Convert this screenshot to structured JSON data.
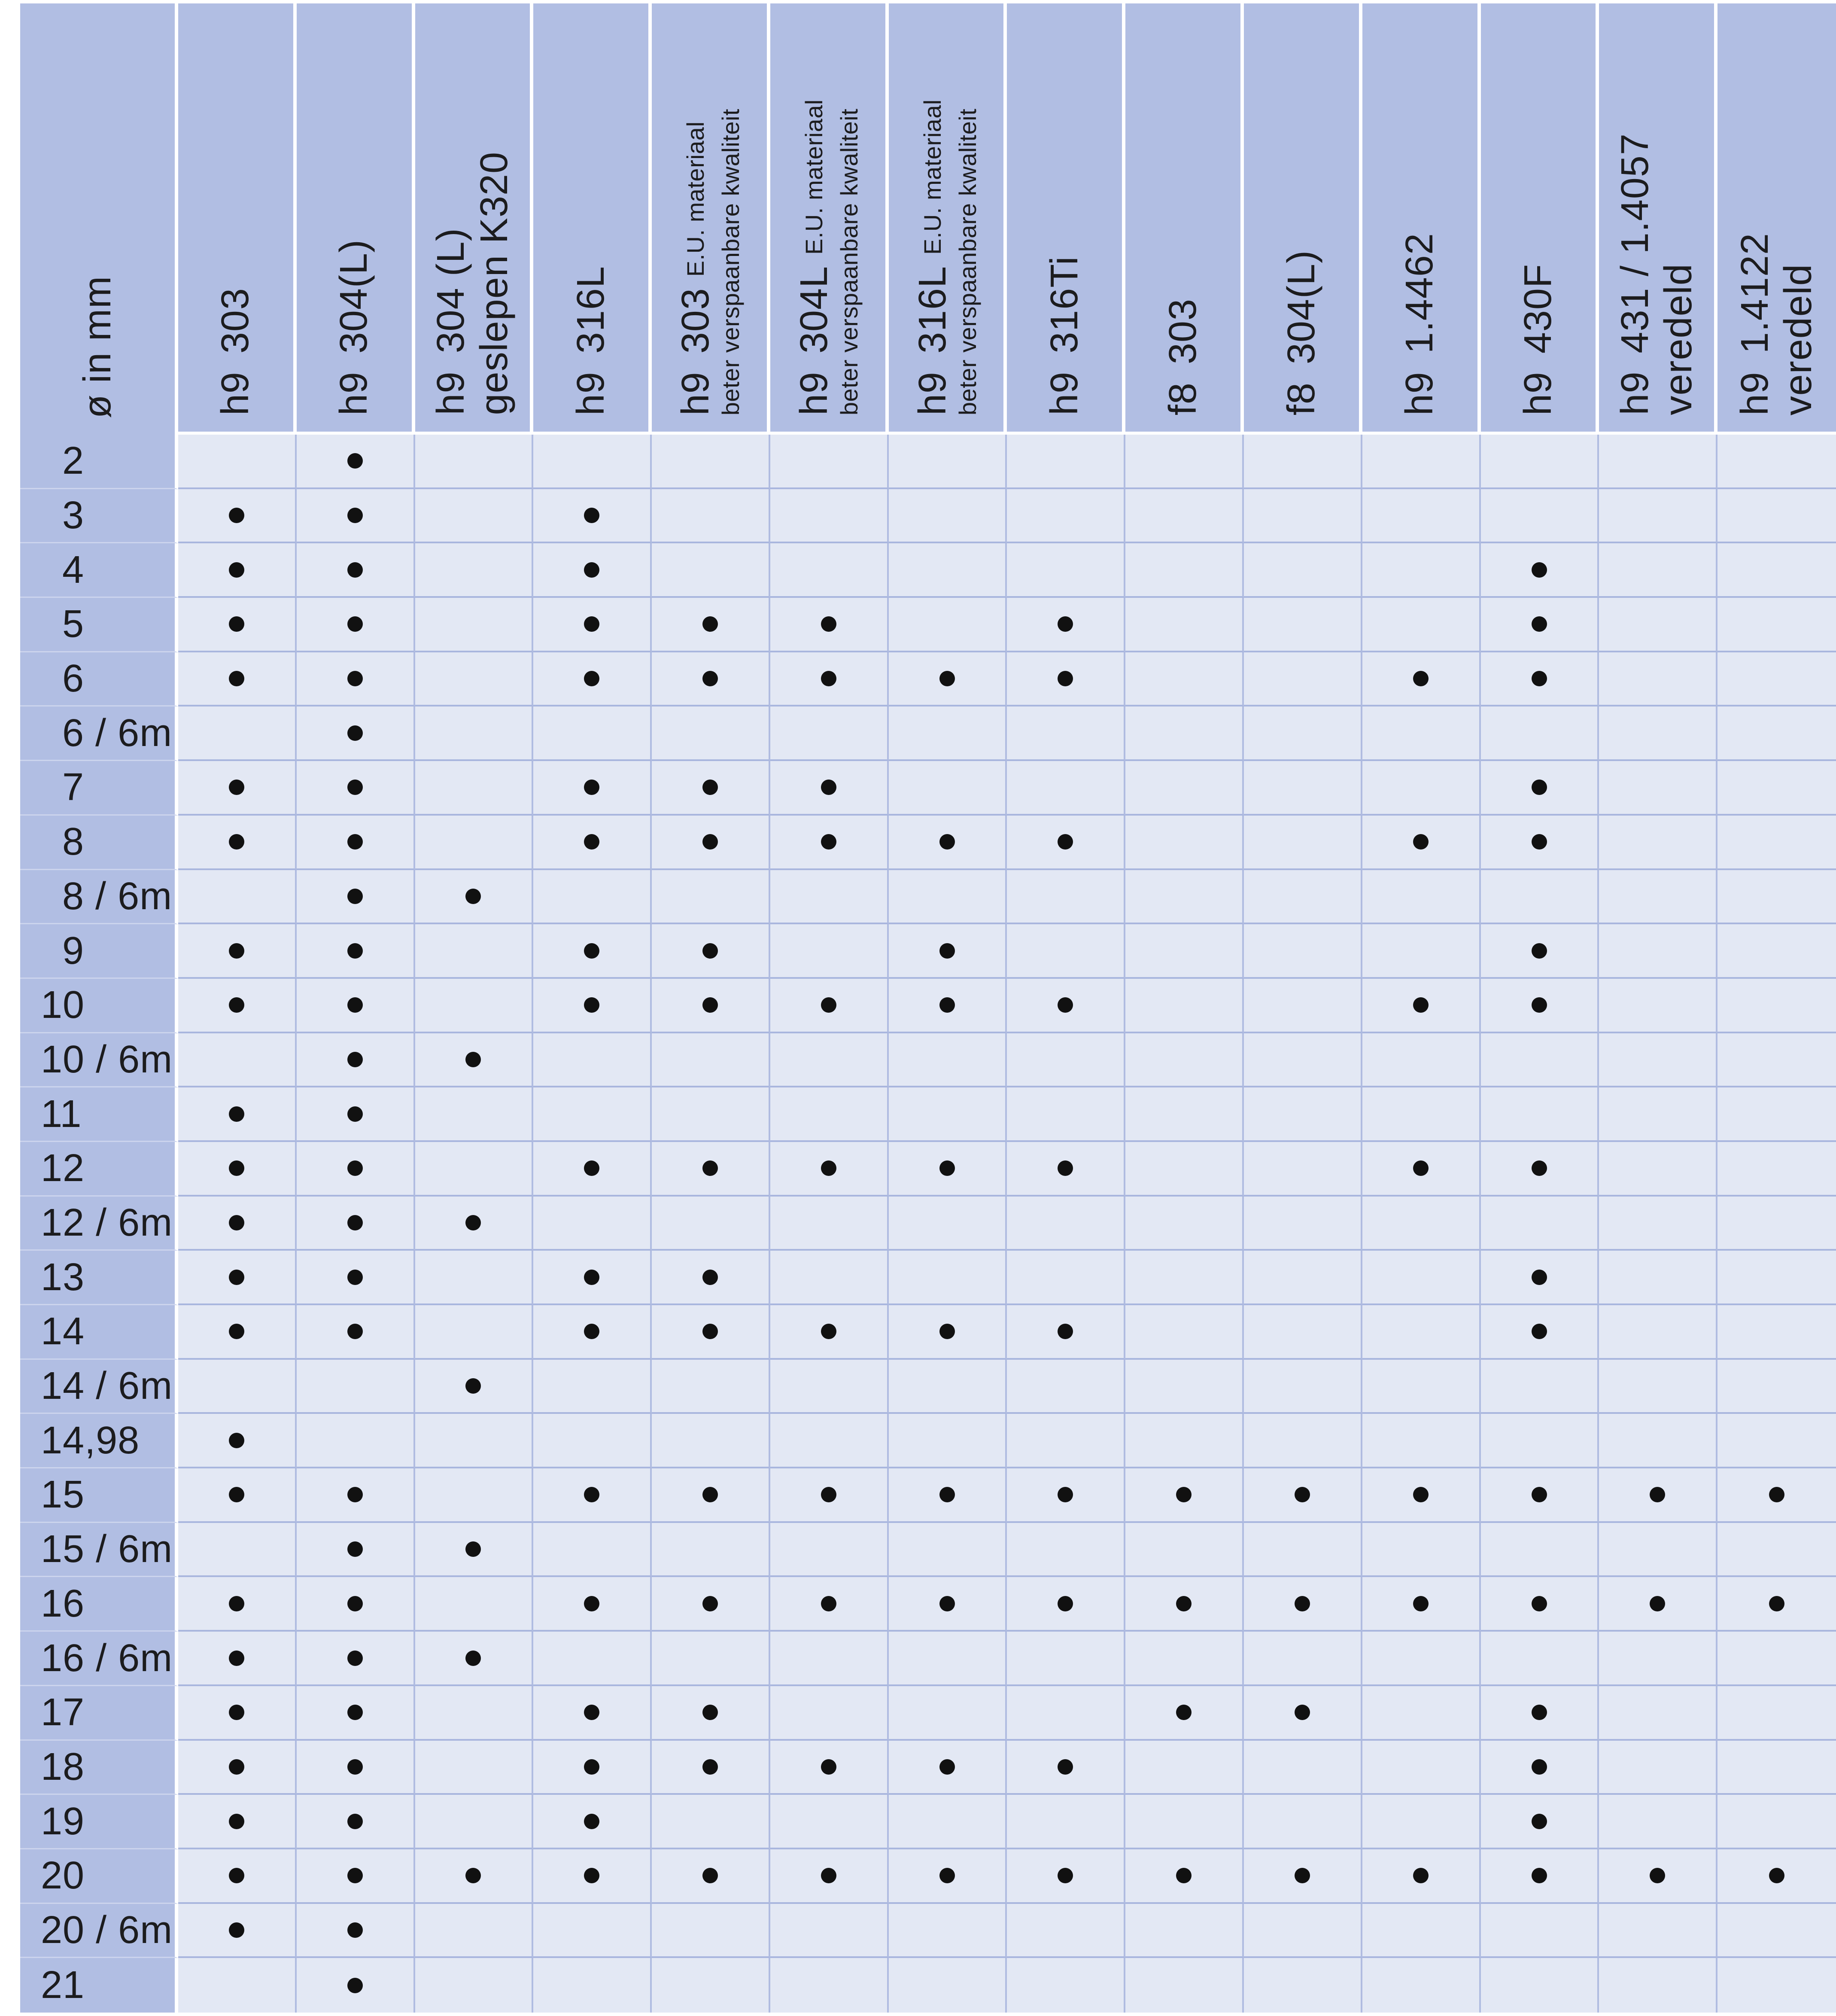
{
  "table": {
    "corner_label": "ø in mm",
    "columns": [
      {
        "tolerance": "h9",
        "grade": "303"
      },
      {
        "tolerance": "h9",
        "grade": "304(L)"
      },
      {
        "tolerance": "h9",
        "grade": "304 (L)",
        "line2": "geslepen K320"
      },
      {
        "tolerance": "h9",
        "grade": "316L"
      },
      {
        "tolerance": "h9",
        "grade": "303",
        "grade_suffix_small": "E.U. materiaal",
        "line2_small": "beter verspaanbare kwaliteit"
      },
      {
        "tolerance": "h9",
        "grade": "304L",
        "grade_suffix_small": "E.U. materiaal",
        "line2_small": "beter verspaanbare kwaliteit"
      },
      {
        "tolerance": "h9",
        "grade": "316L",
        "grade_suffix_small": "E.U. materiaal",
        "line2_small": "beter verspaanbare kwaliteit"
      },
      {
        "tolerance": "h9",
        "grade": "316Ti"
      },
      {
        "tolerance": "f8",
        "grade": "303"
      },
      {
        "tolerance": "f8",
        "grade": "304(L)"
      },
      {
        "tolerance": "h9",
        "grade": "1.4462"
      },
      {
        "tolerance": "h9",
        "grade": "430F"
      },
      {
        "tolerance": "h9",
        "grade": "431 / 1.4057",
        "line2": "veredeld"
      },
      {
        "tolerance": "h9",
        "grade": "1.4122",
        "line2": "veredeld"
      }
    ],
    "rows": [
      {
        "label": "2",
        "dots": [
          2
        ]
      },
      {
        "label": "3",
        "dots": [
          1,
          2,
          4
        ]
      },
      {
        "label": "4",
        "dots": [
          1,
          2,
          4,
          12
        ]
      },
      {
        "label": "5",
        "dots": [
          1,
          2,
          4,
          5,
          6,
          8,
          12
        ]
      },
      {
        "label": "6",
        "dots": [
          1,
          2,
          4,
          5,
          6,
          7,
          8,
          11,
          12
        ]
      },
      {
        "label": "6 / 6m",
        "dots": [
          2
        ]
      },
      {
        "label": "7",
        "dots": [
          1,
          2,
          4,
          5,
          6,
          12
        ]
      },
      {
        "label": "8",
        "dots": [
          1,
          2,
          4,
          5,
          6,
          7,
          8,
          11,
          12
        ]
      },
      {
        "label": "8 / 6m",
        "dots": [
          2,
          3
        ]
      },
      {
        "label": "9",
        "dots": [
          1,
          2,
          4,
          5,
          7,
          12
        ]
      },
      {
        "label": "10",
        "dots": [
          1,
          2,
          4,
          5,
          6,
          7,
          8,
          11,
          12
        ]
      },
      {
        "label": "10 / 6m",
        "dots": [
          2,
          3
        ]
      },
      {
        "label": "11",
        "dots": [
          1,
          2
        ]
      },
      {
        "label": "12",
        "dots": [
          1,
          2,
          4,
          5,
          6,
          7,
          8,
          11,
          12
        ]
      },
      {
        "label": "12 / 6m",
        "dots": [
          1,
          2,
          3
        ]
      },
      {
        "label": "13",
        "dots": [
          1,
          2,
          4,
          5,
          12
        ]
      },
      {
        "label": "14",
        "dots": [
          1,
          2,
          4,
          5,
          6,
          7,
          8,
          12
        ]
      },
      {
        "label": "14 / 6m",
        "dots": [
          3
        ]
      },
      {
        "label": "14,98",
        "dots": [
          1
        ]
      },
      {
        "label": "15",
        "dots": [
          1,
          2,
          4,
          5,
          6,
          7,
          8,
          9,
          10,
          11,
          12,
          13,
          14
        ]
      },
      {
        "label": "15 / 6m",
        "dots": [
          2,
          3
        ]
      },
      {
        "label": "16",
        "dots": [
          1,
          2,
          4,
          5,
          6,
          7,
          8,
          9,
          10,
          11,
          12,
          13,
          14
        ]
      },
      {
        "label": "16 / 6m",
        "dots": [
          1,
          2,
          3
        ]
      },
      {
        "label": "17",
        "dots": [
          1,
          2,
          4,
          5,
          9,
          10,
          12
        ]
      },
      {
        "label": "18",
        "dots": [
          1,
          2,
          4,
          5,
          6,
          7,
          8,
          12
        ]
      },
      {
        "label": "19",
        "dots": [
          1,
          2,
          4,
          12
        ]
      },
      {
        "label": "20",
        "dots": [
          1,
          2,
          3,
          4,
          5,
          6,
          7,
          8,
          9,
          10,
          11,
          12,
          13,
          14
        ]
      },
      {
        "label": "20 / 6m",
        "dots": [
          1,
          2
        ]
      },
      {
        "label": "21",
        "dots": [
          2
        ]
      }
    ]
  },
  "colors": {
    "header_bg": "#b1bee3",
    "cell_bg": "#e3e8f4",
    "horizontal_line": "#a9b6de",
    "vertical_line": "#b0bce1",
    "separator": "#ffffff",
    "dot": "#111111",
    "text": "#1c1c1e"
  }
}
